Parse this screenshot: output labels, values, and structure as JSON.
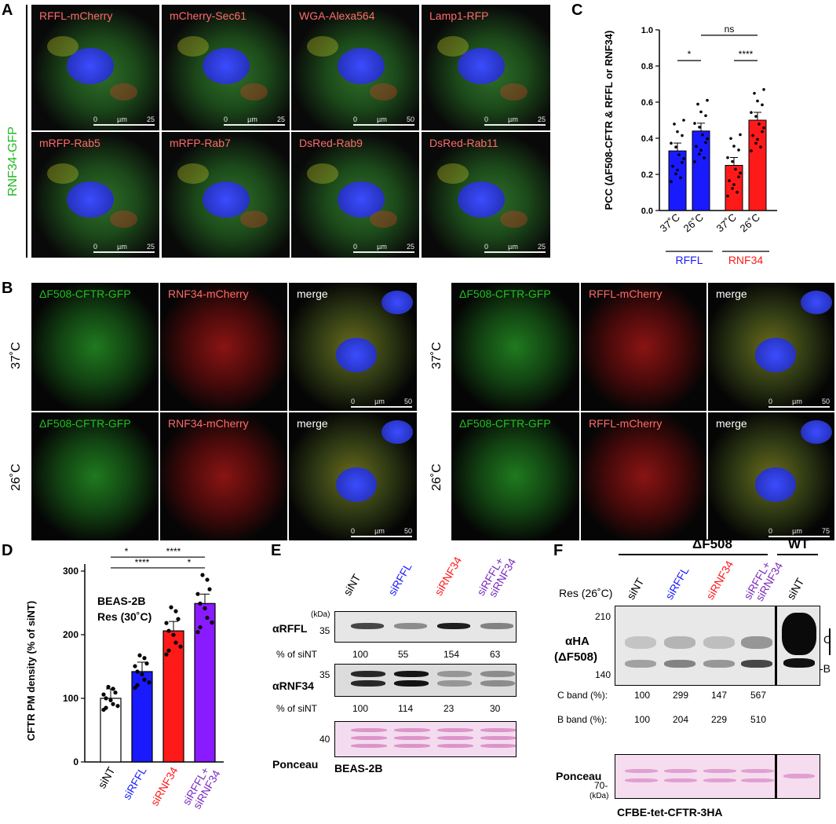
{
  "panel_labels": {
    "A": "A",
    "B": "B",
    "C": "C",
    "D": "D",
    "E": "E",
    "F": "F"
  },
  "panelA": {
    "side_label": "RNF34-GFP",
    "row1": [
      {
        "label": "RFFL-mCherry",
        "scale_mid": "µm",
        "scale_num": "25",
        "scale_zero": "0"
      },
      {
        "label": "mCherry-Sec61",
        "scale_mid": "µm",
        "scale_num": "25",
        "scale_zero": "0"
      },
      {
        "label": "WGA-Alexa564",
        "scale_mid": "µm",
        "scale_num": "50",
        "scale_zero": "0"
      },
      {
        "label": "Lamp1-RFP",
        "scale_mid": "µm",
        "scale_num": "25",
        "scale_zero": "0"
      }
    ],
    "row2": [
      {
        "label": "mRFP-Rab5",
        "scale_mid": "",
        "scale_num": "",
        "scale_zero": ""
      },
      {
        "label": "mRFP-Rab7",
        "scale_mid": "",
        "scale_num": "",
        "scale_zero": ""
      },
      {
        "label": "DsRed-Rab9",
        "scale_mid": "µm",
        "scale_num": "25",
        "scale_zero": "0"
      },
      {
        "label": "DsRed-Rab11",
        "scale_mid": "µm",
        "scale_num": "25",
        "scale_zero": "0"
      }
    ],
    "row2_first_scale": {
      "zero": "0",
      "mid": "µm",
      "num": "25"
    }
  },
  "panelB": {
    "temp_top": "37˚C",
    "temp_bottom": "26˚C",
    "left_labels": [
      "ΔF508-CFTR-GFP",
      "RNF34-mCherry",
      "merge"
    ],
    "right_labels": [
      "ΔF508-CFTR-GFP",
      "RFFL-mCherry",
      "merge"
    ],
    "scale_left_top": {
      "zero": "0",
      "mid": "µm",
      "num": "50"
    },
    "scale_left_bottom": {
      "zero": "0",
      "mid": "µm",
      "num": "50"
    },
    "scale_right_top": {
      "zero": "0",
      "mid": "µm",
      "num": "50"
    },
    "scale_right_bottom": {
      "zero": "0",
      "mid": "µm",
      "num": "75"
    }
  },
  "panelC": {
    "chart_data": {
      "type": "bar",
      "ylabel": "PCC (ΔF508-CFTR & RFFL or RNF34)",
      "ylim": [
        0,
        1.0
      ],
      "yticks": [
        "0.0",
        "0.2",
        "0.4",
        "0.6",
        "0.8",
        "1.0"
      ],
      "categories": [
        "37˚C",
        "26˚C",
        "37˚C",
        "26˚C"
      ],
      "groups": [
        {
          "name": "RFFL",
          "color": "#1a1aff"
        },
        {
          "name": "RNF34",
          "color": "#ff1a1a"
        }
      ],
      "values": [
        0.33,
        0.44,
        0.25,
        0.5
      ],
      "colors": [
        "#1a1aff",
        "#1a1aff",
        "#ff1a1a",
        "#ff1a1a"
      ],
      "significance": [
        {
          "text": "*",
          "from": 0,
          "to": 1
        },
        {
          "text": "****",
          "from": 2,
          "to": 3
        },
        {
          "text": "ns",
          "from": 1,
          "to": 3
        }
      ]
    }
  },
  "panelD": {
    "chart_data": {
      "type": "bar",
      "ylabel": "CFTR PM density (% of siNT)",
      "ylim": [
        0,
        300
      ],
      "yticks": [
        "0",
        "100",
        "200",
        "300"
      ],
      "categories": [
        "siNT",
        "siRFFL",
        "siRNF34",
        "siRFFL+\nsiRNF34"
      ],
      "category_lines": [
        [
          "siNT"
        ],
        [
          "siRFFL"
        ],
        [
          "siRNF34"
        ],
        [
          "siRFFL+",
          "siRNF34"
        ]
      ],
      "values": [
        100,
        142,
        206,
        249
      ],
      "colors": [
        "#ffffff",
        "#1a1aff",
        "#ff1a1a",
        "#8a1aff"
      ],
      "label_colors": [
        "#000000",
        "#1a1aff",
        "#ff1a1a",
        "#7a2bbf"
      ],
      "annotation_lines": [
        "BEAS-2B",
        "Res (30˚C)"
      ],
      "significance": [
        {
          "text": "*",
          "from": 0,
          "to": 1
        },
        {
          "text": "****",
          "from": 1,
          "to": 3
        },
        {
          "text": "****",
          "from": 0,
          "to": 2
        },
        {
          "text": "*",
          "from": 2,
          "to": 3
        }
      ]
    }
  },
  "panelE": {
    "lanes": [
      {
        "lines": [
          "siNT"
        ],
        "color": "#000000"
      },
      {
        "lines": [
          "siRFFL"
        ],
        "color": "#1a1aff"
      },
      {
        "lines": [
          "siRNF34"
        ],
        "color": "#ff1a1a"
      },
      {
        "lines": [
          "siRFFL+",
          "siRNF34"
        ],
        "color": "#7a2bbf"
      }
    ],
    "kda": "(kDa)",
    "rffl": {
      "label": "αRFFL",
      "marker": "35",
      "pct_label": "% of siNT",
      "pct": [
        "100",
        "55",
        "154",
        "63"
      ]
    },
    "rnf34": {
      "label": "αRNF34",
      "marker": "35",
      "pct_label": "% of siNT",
      "pct": [
        "100",
        "114",
        "23",
        "30"
      ]
    },
    "ponceau": {
      "label": "Ponceau",
      "marker": "40"
    },
    "cell_line": "BEAS-2B"
  },
  "panelF": {
    "dF508": "ΔF508",
    "wt": "WT",
    "res": "Res (26˚C)",
    "lanes": [
      {
        "lines": [
          "siNT"
        ],
        "color": "#000000"
      },
      {
        "lines": [
          "siRFFL"
        ],
        "color": "#1a1aff"
      },
      {
        "lines": [
          "siRNF34"
        ],
        "color": "#ff1a1a"
      },
      {
        "lines": [
          "siRFFL+",
          "siRNF34"
        ],
        "color": "#7a2bbf"
      },
      {
        "lines": [
          "siNT"
        ],
        "color": "#000000"
      }
    ],
    "marker_top": "210",
    "marker_bottom": "140",
    "antibody_lines": [
      "αHA",
      "(ΔF508)"
    ],
    "band_c": "C",
    "band_b": "-B",
    "c_band": {
      "label": "C band (%):",
      "values": [
        "100",
        "299",
        "147",
        "567"
      ]
    },
    "b_band": {
      "label": "B band (%):",
      "values": [
        "100",
        "204",
        "229",
        "510"
      ]
    },
    "ponceau": {
      "label": "Ponceau",
      "marker": "70-",
      "kda": "(kDa)"
    },
    "cell_line": "CFBE-tet-CFTR-3HA"
  }
}
